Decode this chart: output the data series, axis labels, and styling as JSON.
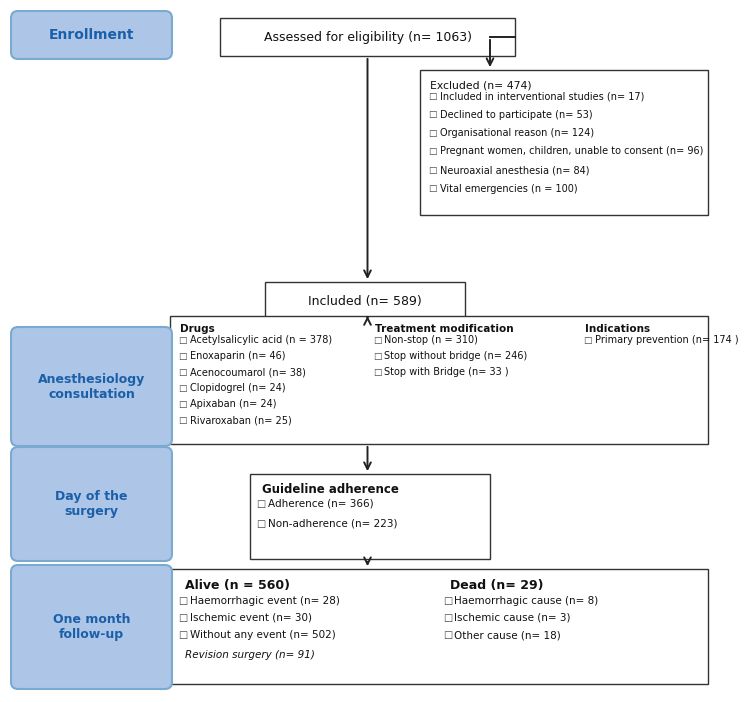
{
  "bg_color": "#ffffff",
  "blue_box_color": "#adc6e8",
  "blue_box_text_color": "#1a5fa8",
  "blue_box_border": "#7aaad0",
  "white_box_border": "#333333",
  "arrow_color": "#222222",
  "enrollment_label": "Enrollment",
  "eligibility_text": "Assessed for eligibility (n= 1063)",
  "excluded_text": "Excluded (n= 474)",
  "excluded_items": [
    "Included in interventional studies (n= 17)",
    "Declined to participate (n= 53)",
    "Organisational reason (n= 124)",
    "Pregnant women, children, unable to consent (n= 96)",
    "Neuroaxial anesthesia (n= 84)",
    "Vital emergencies (n = 100)"
  ],
  "included_text": "Included (n= 589)",
  "anesthesiology_label": "Anesthesiology\nconsultation",
  "drugs_title": "Drugs",
  "drugs_items": [
    "Acetylsalicylic acid (n = 378)",
    "Enoxaparin (n= 46)",
    "Acenocoumarol (n= 38)",
    "Clopidogrel (n= 24)",
    "Apixaban (n= 24)",
    "Rivaroxaban (n= 25)"
  ],
  "treatment_title": "Treatment modification",
  "treatment_items": [
    "Non-stop (n = 310)",
    "Stop without bridge (n= 246)",
    "Stop with Bridge (n= 33 )"
  ],
  "indications_title": "Indications",
  "indications_items": [
    "Primary prevention (n= 174 )"
  ],
  "surgery_label": "Day of the\nsurgery",
  "guideline_title": "Guideline adherence",
  "guideline_items": [
    "Adherence (n= 366)",
    "Non-adherence (n= 223)"
  ],
  "followup_label": "One month\nfollow-up",
  "alive_title": "Alive (n = 560)",
  "alive_items": [
    "Haemorrhagic event (n= 28)",
    "Ischemic event (n= 30)",
    "Without any event (n= 502)"
  ],
  "alive_italic": "Revision surgery (n= 91)",
  "dead_title": "Dead (n= 29)",
  "dead_items": [
    "Haemorrhagic cause (n= 8)",
    "Ischemic cause (n= 3)",
    "Other cause (n= 18)"
  ]
}
